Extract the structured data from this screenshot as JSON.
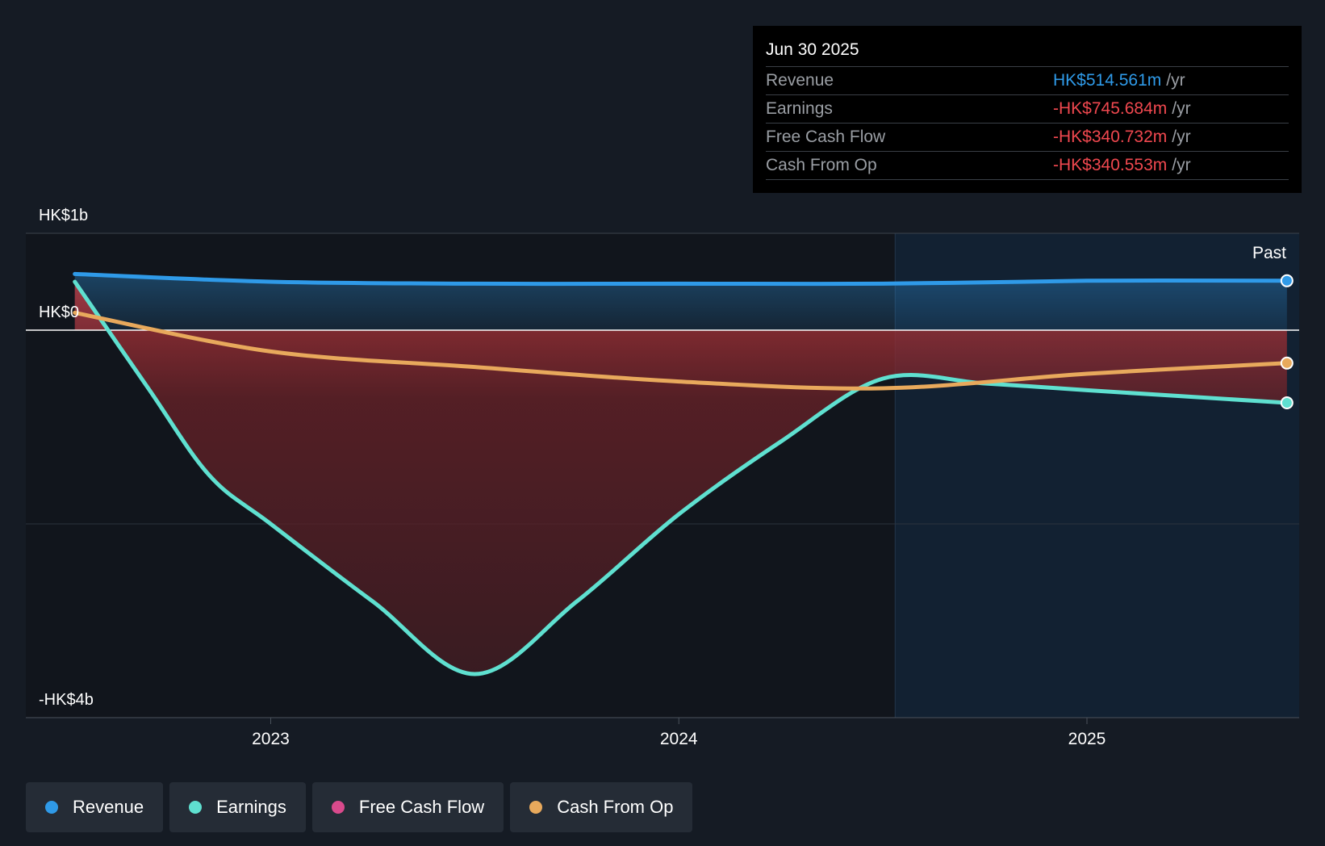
{
  "tooltip": {
    "date": "Jun 30 2025",
    "rows": [
      {
        "label": "Revenue",
        "value": "HK$514.561m",
        "unit": "/yr",
        "color": "#2f9ae8"
      },
      {
        "label": "Earnings",
        "value": "-HK$745.684m",
        "unit": "/yr",
        "color": "#f0484f"
      },
      {
        "label": "Free Cash Flow",
        "value": "-HK$340.732m",
        "unit": "/yr",
        "color": "#f0484f"
      },
      {
        "label": "Cash From Op",
        "value": "-HK$340.553m",
        "unit": "/yr",
        "color": "#f0484f"
      }
    ]
  },
  "chart_data": {
    "type": "line",
    "title": "",
    "past_label": "Past",
    "y_tick_labels": {
      "top": "HK$1b",
      "zero": "HK$0",
      "bottom": "-HK$4b"
    },
    "ylim": [
      -4,
      1
    ],
    "y_unit": "HK$ billions",
    "x_ticks": [
      {
        "value": 2023.0,
        "label": "2023"
      },
      {
        "value": 2024.0,
        "label": "2024"
      },
      {
        "value": 2025.0,
        "label": "2025"
      }
    ],
    "xlim": [
      2022.4,
      2025.52
    ],
    "past_start": 2024.53,
    "series": [
      {
        "name": "Revenue",
        "color": "#2f9ae8",
        "points": [
          [
            2022.52,
            0.58
          ],
          [
            2023.0,
            0.5
          ],
          [
            2023.5,
            0.48
          ],
          [
            2024.0,
            0.48
          ],
          [
            2024.5,
            0.48
          ],
          [
            2025.0,
            0.51
          ],
          [
            2025.49,
            0.51
          ]
        ]
      },
      {
        "name": "Earnings",
        "color": "#5fe0d0",
        "points": [
          [
            2022.52,
            0.5
          ],
          [
            2022.7,
            -0.6
          ],
          [
            2022.85,
            -1.5
          ],
          [
            2023.0,
            -2.0
          ],
          [
            2023.25,
            -2.8
          ],
          [
            2023.5,
            -3.55
          ],
          [
            2023.75,
            -2.8
          ],
          [
            2024.0,
            -1.9
          ],
          [
            2024.25,
            -1.15
          ],
          [
            2024.5,
            -0.5
          ],
          [
            2024.75,
            -0.55
          ],
          [
            2025.0,
            -0.62
          ],
          [
            2025.49,
            -0.75
          ]
        ]
      },
      {
        "name": "Free Cash Flow",
        "color": "#d94a8c",
        "points": []
      },
      {
        "name": "Cash From Op",
        "color": "#e8a95c",
        "points": [
          [
            2022.52,
            0.18
          ],
          [
            2023.0,
            -0.22
          ],
          [
            2023.5,
            -0.38
          ],
          [
            2024.0,
            -0.53
          ],
          [
            2024.5,
            -0.6
          ],
          [
            2025.0,
            -0.45
          ],
          [
            2025.49,
            -0.34
          ]
        ]
      }
    ]
  },
  "legend": [
    {
      "label": "Revenue",
      "color": "#2f9ae8"
    },
    {
      "label": "Earnings",
      "color": "#5fe0d0"
    },
    {
      "label": "Free Cash Flow",
      "color": "#d94a8c"
    },
    {
      "label": "Cash From Op",
      "color": "#e8a95c"
    }
  ]
}
